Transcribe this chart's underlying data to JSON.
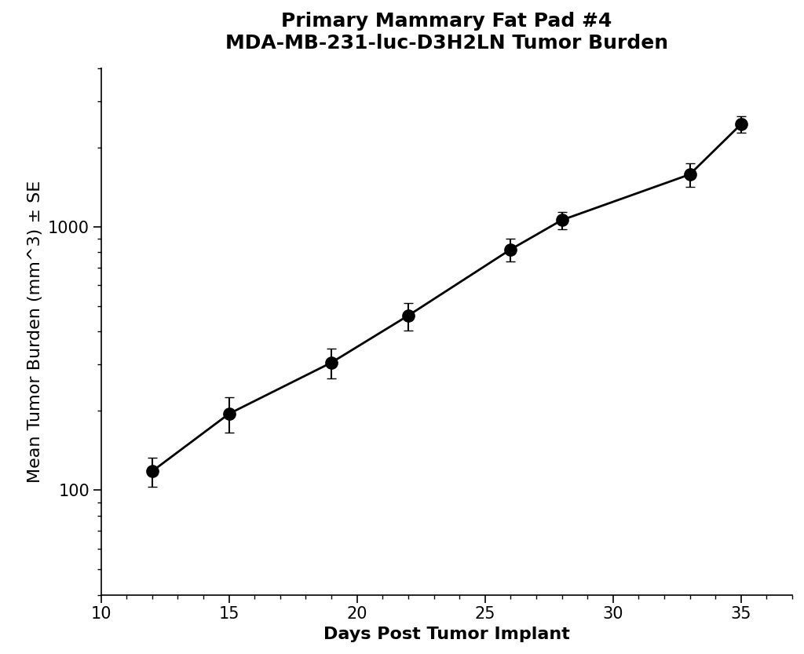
{
  "title_line1": "Primary Mammary Fat Pad #4",
  "title_line2": "MDA-MB-231-luc-D3H2LN Tumor Burden",
  "xlabel": "Days Post Tumor Implant",
  "ylabel": "Mean Tumor Burden (mm^3) ± SE",
  "x": [
    12,
    15,
    19,
    22,
    26,
    28,
    33,
    35
  ],
  "y": [
    118,
    195,
    305,
    460,
    820,
    1060,
    1580,
    2450
  ],
  "yerr_low": [
    15,
    30,
    40,
    55,
    80,
    80,
    160,
    180
  ],
  "yerr_high": [
    15,
    30,
    40,
    55,
    80,
    80,
    160,
    180
  ],
  "xlim": [
    10,
    37
  ],
  "ylim_log": [
    40,
    4000
  ],
  "xticks": [
    10,
    15,
    20,
    25,
    30,
    35
  ],
  "yticks": [
    100,
    1000
  ],
  "line_color": "#000000",
  "marker_color": "#000000",
  "marker_size": 11,
  "line_width": 2.0,
  "capsize": 4,
  "elinewidth": 1.5,
  "background_color": "#ffffff",
  "title_fontsize": 18,
  "axis_label_fontsize": 16,
  "tick_fontsize": 15
}
